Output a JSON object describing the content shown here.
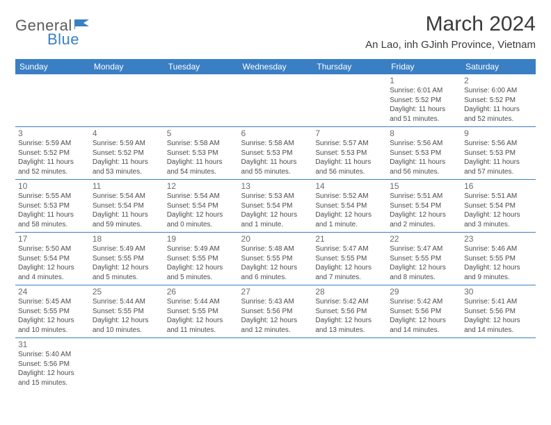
{
  "brand": {
    "part1": "General",
    "part2": "Blue"
  },
  "title": "March 2024",
  "location": "An Lao, inh GJinh Province, Vietnam",
  "colors": {
    "header_bg": "#3a7fc4",
    "header_text": "#ffffff",
    "cell_border": "#3a7fc4",
    "text": "#4b4b4b",
    "daynum": "#6b6b6b"
  },
  "days_of_week": [
    "Sunday",
    "Monday",
    "Tuesday",
    "Wednesday",
    "Thursday",
    "Friday",
    "Saturday"
  ],
  "weeks": [
    [
      null,
      null,
      null,
      null,
      null,
      {
        "n": "1",
        "sunrise": "6:01 AM",
        "sunset": "5:52 PM",
        "daylight": "11 hours and 51 minutes."
      },
      {
        "n": "2",
        "sunrise": "6:00 AM",
        "sunset": "5:52 PM",
        "daylight": "11 hours and 52 minutes."
      }
    ],
    [
      {
        "n": "3",
        "sunrise": "5:59 AM",
        "sunset": "5:52 PM",
        "daylight": "11 hours and 52 minutes."
      },
      {
        "n": "4",
        "sunrise": "5:59 AM",
        "sunset": "5:52 PM",
        "daylight": "11 hours and 53 minutes."
      },
      {
        "n": "5",
        "sunrise": "5:58 AM",
        "sunset": "5:53 PM",
        "daylight": "11 hours and 54 minutes."
      },
      {
        "n": "6",
        "sunrise": "5:58 AM",
        "sunset": "5:53 PM",
        "daylight": "11 hours and 55 minutes."
      },
      {
        "n": "7",
        "sunrise": "5:57 AM",
        "sunset": "5:53 PM",
        "daylight": "11 hours and 56 minutes."
      },
      {
        "n": "8",
        "sunrise": "5:56 AM",
        "sunset": "5:53 PM",
        "daylight": "11 hours and 56 minutes."
      },
      {
        "n": "9",
        "sunrise": "5:56 AM",
        "sunset": "5:53 PM",
        "daylight": "11 hours and 57 minutes."
      }
    ],
    [
      {
        "n": "10",
        "sunrise": "5:55 AM",
        "sunset": "5:53 PM",
        "daylight": "11 hours and 58 minutes."
      },
      {
        "n": "11",
        "sunrise": "5:54 AM",
        "sunset": "5:54 PM",
        "daylight": "11 hours and 59 minutes."
      },
      {
        "n": "12",
        "sunrise": "5:54 AM",
        "sunset": "5:54 PM",
        "daylight": "12 hours and 0 minutes."
      },
      {
        "n": "13",
        "sunrise": "5:53 AM",
        "sunset": "5:54 PM",
        "daylight": "12 hours and 1 minute."
      },
      {
        "n": "14",
        "sunrise": "5:52 AM",
        "sunset": "5:54 PM",
        "daylight": "12 hours and 1 minute."
      },
      {
        "n": "15",
        "sunrise": "5:51 AM",
        "sunset": "5:54 PM",
        "daylight": "12 hours and 2 minutes."
      },
      {
        "n": "16",
        "sunrise": "5:51 AM",
        "sunset": "5:54 PM",
        "daylight": "12 hours and 3 minutes."
      }
    ],
    [
      {
        "n": "17",
        "sunrise": "5:50 AM",
        "sunset": "5:54 PM",
        "daylight": "12 hours and 4 minutes."
      },
      {
        "n": "18",
        "sunrise": "5:49 AM",
        "sunset": "5:55 PM",
        "daylight": "12 hours and 5 minutes."
      },
      {
        "n": "19",
        "sunrise": "5:49 AM",
        "sunset": "5:55 PM",
        "daylight": "12 hours and 5 minutes."
      },
      {
        "n": "20",
        "sunrise": "5:48 AM",
        "sunset": "5:55 PM",
        "daylight": "12 hours and 6 minutes."
      },
      {
        "n": "21",
        "sunrise": "5:47 AM",
        "sunset": "5:55 PM",
        "daylight": "12 hours and 7 minutes."
      },
      {
        "n": "22",
        "sunrise": "5:47 AM",
        "sunset": "5:55 PM",
        "daylight": "12 hours and 8 minutes."
      },
      {
        "n": "23",
        "sunrise": "5:46 AM",
        "sunset": "5:55 PM",
        "daylight": "12 hours and 9 minutes."
      }
    ],
    [
      {
        "n": "24",
        "sunrise": "5:45 AM",
        "sunset": "5:55 PM",
        "daylight": "12 hours and 10 minutes."
      },
      {
        "n": "25",
        "sunrise": "5:44 AM",
        "sunset": "5:55 PM",
        "daylight": "12 hours and 10 minutes."
      },
      {
        "n": "26",
        "sunrise": "5:44 AM",
        "sunset": "5:55 PM",
        "daylight": "12 hours and 11 minutes."
      },
      {
        "n": "27",
        "sunrise": "5:43 AM",
        "sunset": "5:56 PM",
        "daylight": "12 hours and 12 minutes."
      },
      {
        "n": "28",
        "sunrise": "5:42 AM",
        "sunset": "5:56 PM",
        "daylight": "12 hours and 13 minutes."
      },
      {
        "n": "29",
        "sunrise": "5:42 AM",
        "sunset": "5:56 PM",
        "daylight": "12 hours and 14 minutes."
      },
      {
        "n": "30",
        "sunrise": "5:41 AM",
        "sunset": "5:56 PM",
        "daylight": "12 hours and 14 minutes."
      }
    ],
    [
      {
        "n": "31",
        "sunrise": "5:40 AM",
        "sunset": "5:56 PM",
        "daylight": "12 hours and 15 minutes."
      },
      null,
      null,
      null,
      null,
      null,
      null
    ]
  ],
  "labels": {
    "sunrise": "Sunrise: ",
    "sunset": "Sunset: ",
    "daylight": "Daylight: "
  }
}
